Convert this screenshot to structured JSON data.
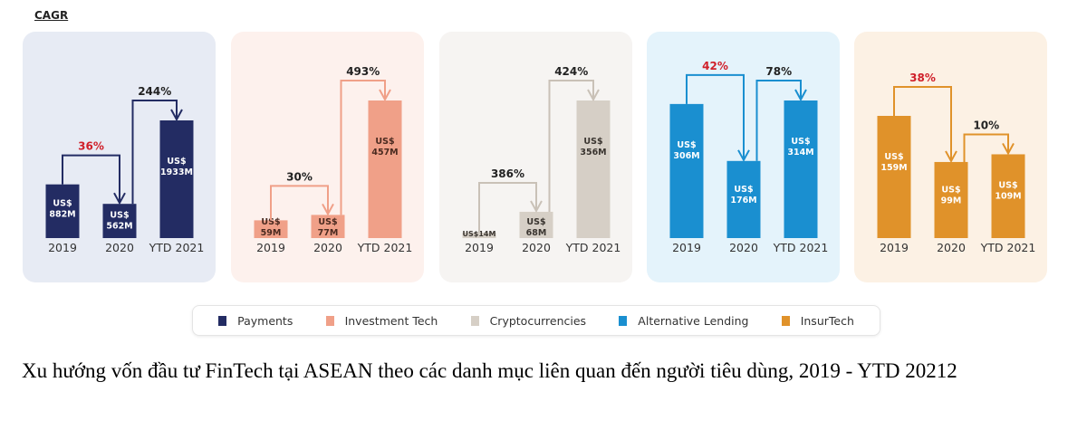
{
  "header": {
    "cagr_label": "CAGR"
  },
  "chart_data": [
    {
      "type": "bar",
      "series_name": "Payments",
      "color": "#232c63",
      "bg": "#e7ebf4",
      "label_color": "#ffffff",
      "categories": [
        "2019",
        "2020",
        "YTD 2021"
      ],
      "values": [
        882,
        562,
        1933
      ],
      "value_labels": [
        "US$ 882M",
        "US$ 562M",
        "US$ 1933M"
      ],
      "cagr": [
        {
          "label": "36%",
          "color": "#d0202a"
        },
        {
          "label": "244%",
          "color": "#222222"
        }
      ]
    },
    {
      "type": "bar",
      "series_name": "Investment Tech",
      "color": "#f0a088",
      "bg": "#fdf1ed",
      "label_color": "#4a2a20",
      "categories": [
        "2019",
        "2020",
        "YTD 2021"
      ],
      "values": [
        59,
        77,
        457
      ],
      "value_labels": [
        "US$ 59M",
        "US$ 77M",
        "US$ 457M"
      ],
      "cagr": [
        {
          "label": "30%",
          "color": "#222222"
        },
        {
          "label": "493%",
          "color": "#222222"
        }
      ]
    },
    {
      "type": "bar",
      "series_name": "Cryptocurrencies",
      "color": "#d6cfc6",
      "bg": "#f6f4f2",
      "label_color": "#3a3530",
      "categories": [
        "2019",
        "2020",
        "YTD 2021"
      ],
      "values": [
        14,
        68,
        356
      ],
      "value_labels": [
        "US$14M",
        "US$ 68M",
        "US$ 356M"
      ],
      "cagr": [
        {
          "label": "386%",
          "color": "#222222"
        },
        {
          "label": "424%",
          "color": "#222222"
        }
      ]
    },
    {
      "type": "bar",
      "series_name": "Alternative Lending",
      "color": "#1a8fd0",
      "bg": "#e4f3fb",
      "label_color": "#ffffff",
      "categories": [
        "2019",
        "2020",
        "YTD 2021"
      ],
      "values": [
        306,
        176,
        314
      ],
      "value_labels": [
        "US$ 306M",
        "US$ 176M",
        "US$ 314M"
      ],
      "cagr": [
        {
          "label": "42%",
          "color": "#d0202a"
        },
        {
          "label": "78%",
          "color": "#222222"
        }
      ]
    },
    {
      "type": "bar",
      "series_name": "InsurTech",
      "color": "#e0922a",
      "bg": "#fcf1e4",
      "label_color": "#ffffff",
      "categories": [
        "2019",
        "2020",
        "YTD 2021"
      ],
      "values": [
        159,
        99,
        109
      ],
      "value_labels": [
        "US$ 159M",
        "US$ 99M",
        "US$ 109M"
      ],
      "cagr": [
        {
          "label": "38%",
          "color": "#d0202a"
        },
        {
          "label": "10%",
          "color": "#222222"
        }
      ]
    }
  ],
  "legend": [
    {
      "label": "Payments",
      "color": "#232c63"
    },
    {
      "label": "Investment Tech",
      "color": "#f0a088"
    },
    {
      "label": "Cryptocurrencies",
      "color": "#d6cfc6"
    },
    {
      "label": "Alternative Lending",
      "color": "#1a8fd0"
    },
    {
      "label": "InsurTech",
      "color": "#e0922a"
    }
  ],
  "caption": "Xu hướng vốn đầu tư FinTech tại ASEAN theo các danh mục liên quan đến người tiêu dùng, 2019 - YTD 20212"
}
